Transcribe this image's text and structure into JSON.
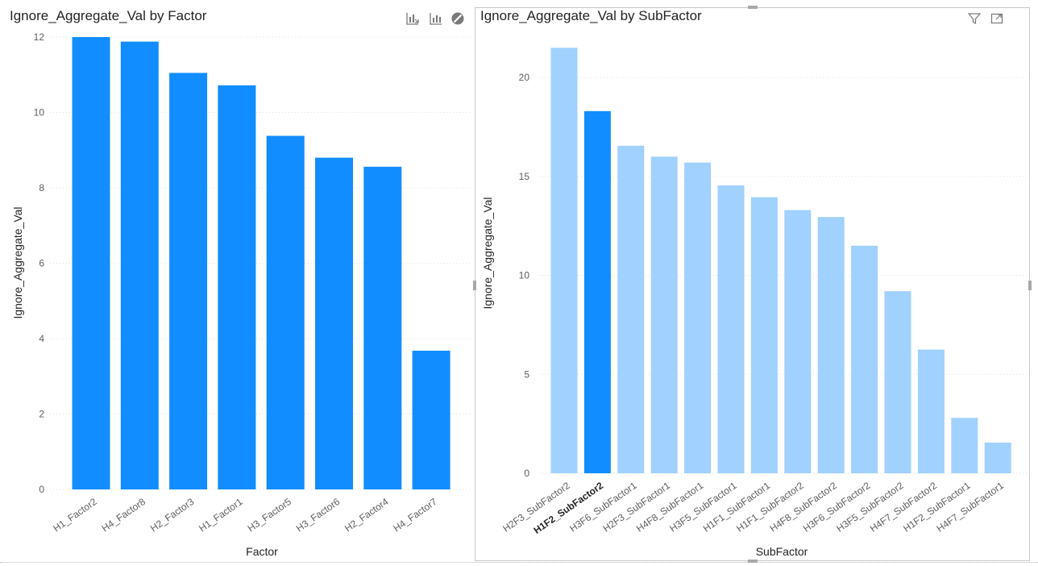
{
  "left_visual": {
    "title": "Ignore_Aggregate_Val by Factor",
    "icons": [
      "drill-down-icon",
      "expand-hierarchy-icon",
      "blocked-icon"
    ]
  },
  "right_visual": {
    "title": "Ignore_Aggregate_Val by SubFactor",
    "icons": [
      "filter-icon",
      "focus-mode-icon"
    ]
  },
  "colors": {
    "bar": "#118DFF",
    "bar_faded": "#A0D1FF",
    "axis_text": "#605E5C",
    "grid": "#E1DFDD"
  },
  "chart_data": [
    {
      "type": "bar",
      "title": "Ignore_Aggregate_Val by Factor",
      "xlabel": "Factor",
      "ylabel": "Ignore_Aggregate_Val",
      "categories": [
        "H1_Factor2",
        "H4_Factor8",
        "H2_Factor3",
        "H1_Factor1",
        "H3_Factor5",
        "H3_Factor6",
        "H2_Factor4",
        "H4_Factor7"
      ],
      "values": [
        12.0,
        11.88,
        11.05,
        10.72,
        9.38,
        8.8,
        8.56,
        3.68
      ],
      "yticks": [
        "0",
        "2",
        "4",
        "6",
        "8",
        "10",
        "12"
      ],
      "ylim": [
        0,
        12
      ],
      "grid": true,
      "highlighted": null
    },
    {
      "type": "bar",
      "title": "Ignore_Aggregate_Val by SubFactor",
      "xlabel": "SubFactor",
      "ylabel": "Ignore_Aggregate_Val",
      "categories": [
        "H2F3_SubFactor2",
        "H1F2_SubFactor2",
        "H3F6_SubFactor1",
        "H2F3_SubFactor1",
        "H4F8_SubFactor1",
        "H3F5_SubFactor1",
        "H1F1_SubFactor1",
        "H1F1_SubFactor2",
        "H4F8_SubFactor2",
        "H3F6_SubFactor2",
        "H3F5_SubFactor2",
        "H4F7_SubFactor2",
        "H1F2_SubFactor1",
        "H4F7_SubFactor1"
      ],
      "values": [
        21.5,
        18.3,
        16.55,
        16.0,
        15.7,
        14.55,
        13.95,
        13.3,
        12.95,
        11.5,
        9.2,
        6.25,
        2.8,
        1.55
      ],
      "yticks": [
        "0",
        "5",
        "10",
        "15",
        "20"
      ],
      "ylim": [
        0,
        22
      ],
      "grid": true,
      "highlighted": "H1F2_SubFactor2"
    }
  ]
}
